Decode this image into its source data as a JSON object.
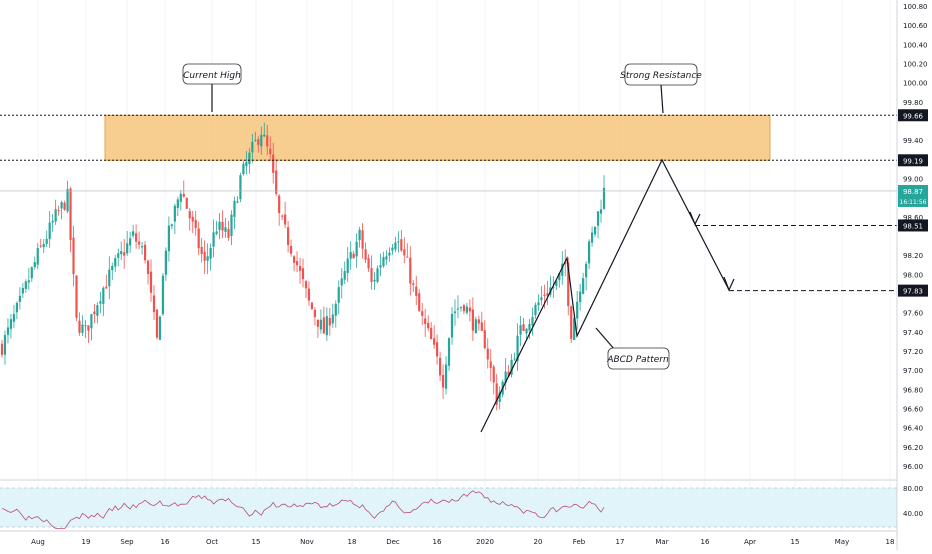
{
  "chart_data": {
    "type": "candlestick",
    "title": "",
    "price_axis": {
      "ylim": [
        95.8,
        100.9
      ],
      "ticks": [
        "100.80",
        "100.60",
        "100.40",
        "100.20",
        "100.00",
        "99.80",
        "99.40",
        "99.00",
        "98.60",
        "98.20",
        "98.00",
        "97.60",
        "97.40",
        "97.20",
        "97.00",
        "96.80",
        "96.60",
        "96.40",
        "96.20",
        "96.00"
      ],
      "tick_values": [
        100.8,
        100.6,
        100.4,
        100.2,
        100.0,
        99.8,
        99.4,
        99.0,
        98.6,
        98.2,
        98.0,
        97.6,
        97.4,
        97.2,
        97.0,
        96.8,
        96.6,
        96.4,
        96.2,
        96.0
      ]
    },
    "price_labels": [
      {
        "text": "99.66",
        "value": 99.66,
        "style": "dark"
      },
      {
        "text": "99.19",
        "value": 99.19,
        "style": "dark"
      },
      {
        "text": "98.87",
        "value": 98.87,
        "style": "green"
      },
      {
        "text": "16:11:56",
        "value": 98.76,
        "style": "green"
      },
      {
        "text": "98.51",
        "value": 98.51,
        "style": "dark"
      },
      {
        "text": "97.83",
        "value": 97.83,
        "style": "dark"
      }
    ],
    "time_axis": {
      "labels": [
        "Aug",
        "19",
        "Sep",
        "16",
        "Oct",
        "15",
        "Nov",
        "18",
        "Dec",
        "16",
        "2020",
        "20",
        "Feb",
        "17",
        "Mar",
        "16",
        "Apr",
        "15",
        "May",
        "18"
      ]
    },
    "resistance_zone": {
      "low": 99.19,
      "high": 99.66,
      "color": "#f7c47c"
    },
    "levels": [
      99.66,
      99.19,
      98.51,
      97.83
    ],
    "annotations": [
      {
        "text": "Current High"
      },
      {
        "text": "Strong Resistance"
      },
      {
        "text": "ABCD Pattern"
      }
    ],
    "candles": {
      "count": 156,
      "first_price": 97.25,
      "last_price": 98.87,
      "colors": {
        "up": "#26a69a",
        "down": "#ef5350"
      }
    },
    "rsi": {
      "ticks": [
        "80.00",
        "40.00"
      ],
      "band": [
        30,
        70
      ],
      "color": "#b94c7a"
    }
  }
}
